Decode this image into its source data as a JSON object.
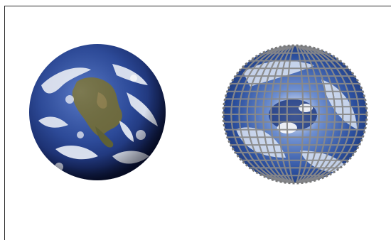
{
  "scene": {
    "background": "#ffffff",
    "border_color": "#2a2a2a",
    "left_caption": "",
    "right_caption": "",
    "bottom_caption_line1": "",
    "bottom_caption_line2": ""
  },
  "images": {
    "left_globe": {
      "subject": "earth-globe",
      "ocean_color": "#243d8a",
      "land_color": "#6b6a3c",
      "cloud_color": "#eef2fa"
    },
    "right_globe": {
      "subject": "earth-globe-mesh",
      "ocean_color": "#2b4f9e",
      "mesh_color": "#8a8a8a"
    }
  }
}
